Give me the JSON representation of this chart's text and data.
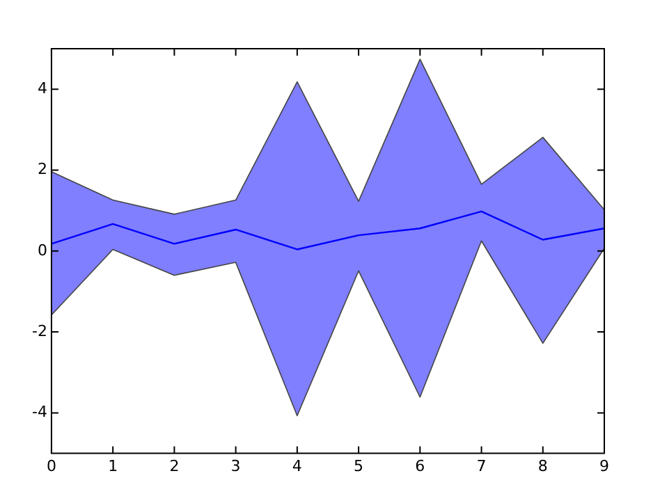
{
  "chart_data": {
    "type": "line",
    "x": [
      0,
      1,
      2,
      3,
      4,
      5,
      6,
      7,
      8,
      9
    ],
    "series": [
      {
        "color": "#0000ff",
        "values": [
          0.18,
          0.67,
          0.18,
          0.53,
          0.04,
          0.39,
          0.56,
          0.98,
          0.28,
          0.56
        ],
        "lower": [
          -1.58,
          0.04,
          -0.6,
          -0.28,
          -4.07,
          -0.49,
          -3.61,
          0.25,
          -2.28,
          0.07
        ],
        "upper": [
          1.96,
          1.26,
          0.91,
          1.26,
          4.18,
          1.23,
          4.74,
          1.65,
          2.81,
          1.02
        ]
      }
    ],
    "xlim": [
      0,
      9
    ],
    "xticks": [
      0,
      1,
      2,
      3,
      4,
      5,
      6,
      7,
      8,
      9
    ],
    "ylim": [
      -5,
      5
    ],
    "yticks": [
      -4,
      -2,
      0,
      2,
      4
    ],
    "grid": false,
    "legend": false,
    "marker": "none",
    "line_style": "solid"
  }
}
